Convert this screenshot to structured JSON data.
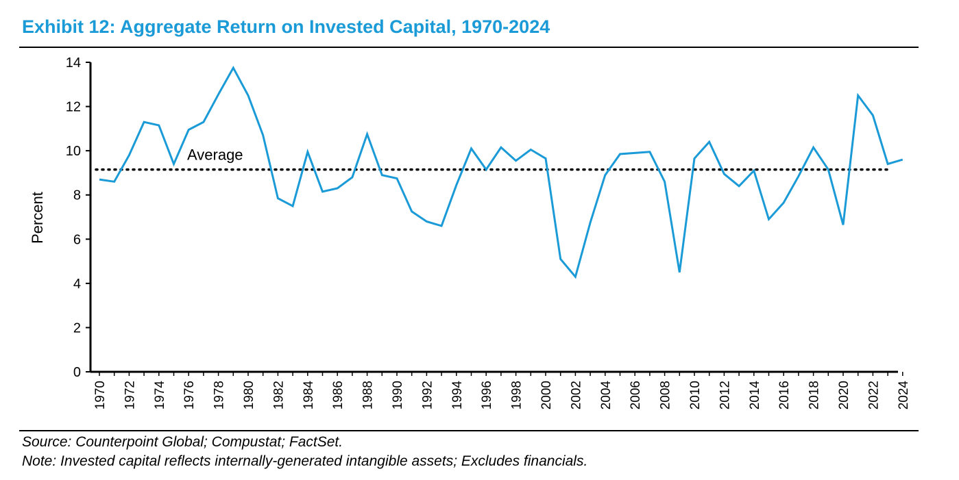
{
  "title": "Exhibit 12: Aggregate Return on Invested Capital, 1970-2024",
  "source": "Source: Counterpoint Global; Compustat; FactSet.",
  "note": "Note: Invested capital reflects internally-generated intangible assets; Excludes financials.",
  "colors": {
    "title": "#1a9ad6",
    "line": "#1a9ad6",
    "average": "#000000"
  },
  "chart_data": {
    "type": "line",
    "title": "Exhibit 12: Aggregate Return on Invested Capital, 1970-2024",
    "xlabel": "",
    "ylabel": "Percent",
    "ylim": [
      0,
      14
    ],
    "yticks": [
      0,
      2,
      4,
      6,
      8,
      10,
      12,
      14
    ],
    "xticks": [
      "1970",
      "1972",
      "1974",
      "1976",
      "1978",
      "1980",
      "1982",
      "1984",
      "1986",
      "1988",
      "1990",
      "1992",
      "1994",
      "1996",
      "1998",
      "2000",
      "2002",
      "2004",
      "2006",
      "2008",
      "2010",
      "2012",
      "2014",
      "2016",
      "2018",
      "2020",
      "2022",
      "2024"
    ],
    "grid": false,
    "series": [
      {
        "name": "Aggregate ROIC",
        "x": [
          1970,
          1971,
          1972,
          1973,
          1974,
          1975,
          1976,
          1977,
          1978,
          1979,
          1980,
          1981,
          1982,
          1983,
          1984,
          1985,
          1986,
          1987,
          1988,
          1989,
          1990,
          1991,
          1992,
          1993,
          1994,
          1995,
          1996,
          1997,
          1998,
          1999,
          2000,
          2001,
          2002,
          2003,
          2004,
          2005,
          2006,
          2007,
          2008,
          2009,
          2010,
          2011,
          2012,
          2013,
          2014,
          2015,
          2016,
          2017,
          2018,
          2019,
          2020,
          2021,
          2022,
          2023,
          2024
        ],
        "values": [
          8.7,
          8.6,
          9.8,
          11.3,
          11.15,
          9.4,
          10.95,
          11.3,
          12.55,
          13.75,
          12.5,
          10.7,
          7.85,
          7.5,
          9.95,
          8.15,
          8.3,
          8.8,
          10.75,
          8.9,
          8.75,
          7.25,
          6.8,
          6.6,
          8.45,
          10.1,
          9.15,
          10.15,
          9.55,
          10.05,
          9.65,
          5.1,
          4.3,
          6.75,
          8.9,
          9.85,
          9.9,
          9.95,
          8.6,
          4.5,
          9.65,
          10.4,
          8.95,
          8.4,
          9.1,
          6.9,
          7.65,
          8.85,
          10.15,
          9.15,
          6.65,
          12.5,
          11.6,
          9.4,
          9.6
        ]
      }
    ],
    "average": {
      "label": "Average",
      "value": 9.15
    }
  }
}
